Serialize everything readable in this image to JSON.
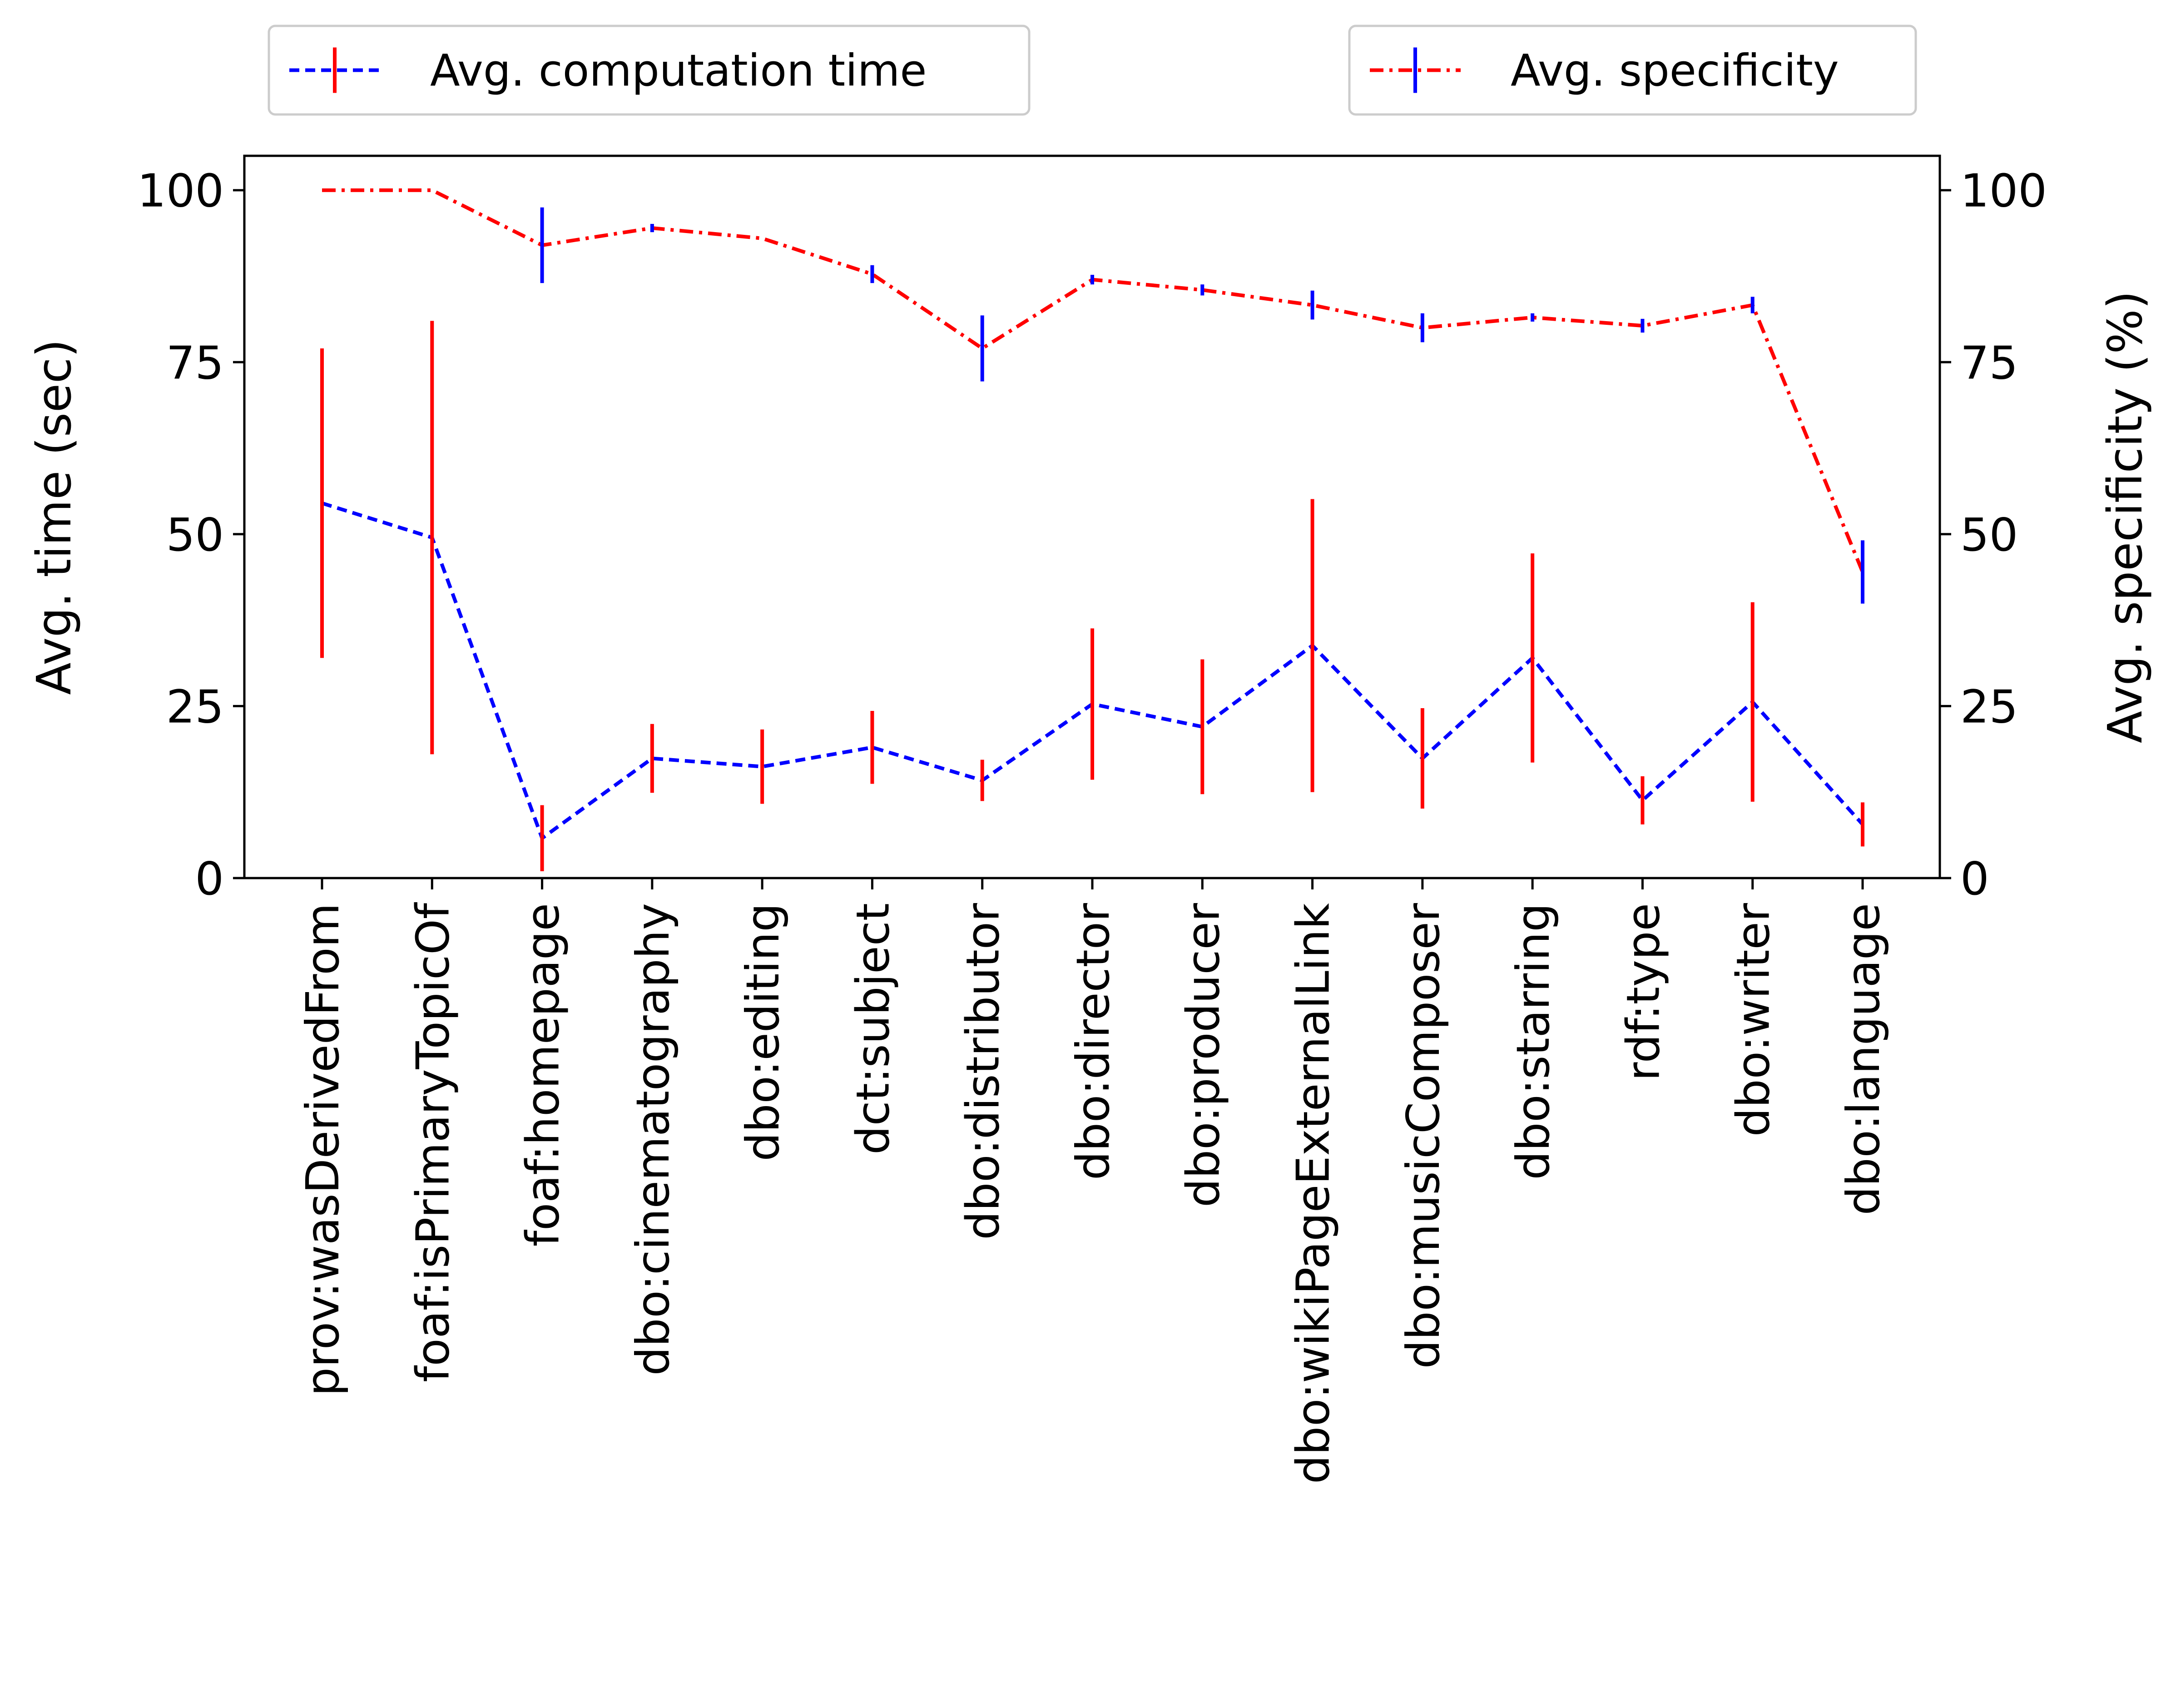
{
  "chart_data": {
    "type": "line",
    "categories": [
      "prov:wasDerivedFrom",
      "foaf:isPrimaryTopicOf",
      "foaf:homepage",
      "dbo:cinematography",
      "dbo:editing",
      "dct:subject",
      "dbo:distributor",
      "dbo:director",
      "dbo:producer",
      "dbo:wikiPageExternalLink",
      "dbo:musicComposer",
      "dbo:starring",
      "rdf:type",
      "dbo:writer",
      "dbo:language"
    ],
    "ylabel_left": "Avg. time (sec)",
    "ylabel_right": "Avg. specificity (%)",
    "ylim_left": [
      0,
      105
    ],
    "ylim_right": [
      0,
      105
    ],
    "yticks_left": [
      "0",
      "25",
      "50",
      "75",
      "100"
    ],
    "yticks_right": [
      "0",
      "25",
      "50",
      "75",
      "100"
    ],
    "grid": false,
    "series": [
      {
        "name": "Avg. computation time",
        "axis": "left",
        "color": "#0000ff",
        "error_color": "#ff0000",
        "linestyle": "dashed",
        "values": [
          54.5,
          49.5,
          5.8,
          17.4,
          16.2,
          19.0,
          14.2,
          25.3,
          22.0,
          33.8,
          17.4,
          32.0,
          11.3,
          25.6,
          7.8
        ],
        "errors": [
          22.5,
          31.5,
          4.8,
          5.0,
          5.4,
          5.3,
          3.0,
          11.0,
          9.8,
          21.3,
          7.3,
          15.2,
          3.5,
          14.5,
          3.2
        ]
      },
      {
        "name": "Avg. specificity",
        "axis": "right",
        "color": "#ff0000",
        "error_color": "#0000ff",
        "linestyle": "dashdot",
        "values": [
          100,
          100,
          92.0,
          94.5,
          93.0,
          87.8,
          77.0,
          87.0,
          85.5,
          83.3,
          80.0,
          81.5,
          80.3,
          83.3,
          44.5
        ],
        "errors": [
          0,
          0,
          5.5,
          0.6,
          0,
          1.3,
          4.8,
          0.7,
          0.8,
          2.1,
          2.1,
          0.6,
          1.0,
          1.2,
          4.6
        ]
      }
    ],
    "legend": [
      {
        "label": "Avg. computation time",
        "position": "top-left"
      },
      {
        "label": "Avg. specificity",
        "position": "top-right"
      }
    ]
  }
}
